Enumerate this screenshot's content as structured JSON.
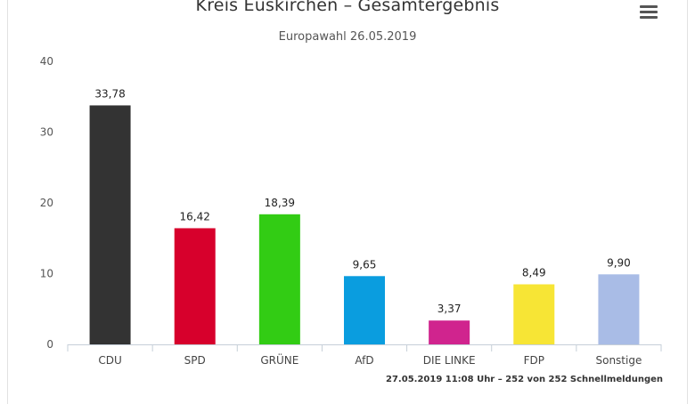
{
  "header": {
    "title": "Kreis Euskirchen – Gesamtergebnis",
    "subtitle": "Europawahl 26.05.2019",
    "menu_icon": "hamburger-menu-icon"
  },
  "footer": {
    "note": "27.05.2019 11:08 Uhr – 252 von 252 Schnellmeldungen"
  },
  "chart_data": {
    "type": "bar",
    "title": "Kreis Euskirchen – Gesamtergebnis",
    "subtitle": "Europawahl 26.05.2019",
    "xlabel": "",
    "ylabel": "",
    "ylim": [
      0,
      40
    ],
    "yticks": [
      "0",
      "10",
      "20",
      "30",
      "40"
    ],
    "grid": false,
    "legend": "none",
    "categories": [
      "CDU",
      "SPD",
      "GRÜNE",
      "AfD",
      "DIE LINKE",
      "FDP",
      "Sonstige"
    ],
    "values": [
      33.78,
      16.42,
      18.39,
      9.65,
      3.37,
      8.49,
      9.9
    ],
    "value_labels": [
      "33,78",
      "16,42",
      "18,39",
      "9,65",
      "3,37",
      "8,49",
      "9,90"
    ],
    "colors": [
      "#333333",
      "#d7002c",
      "#32cc14",
      "#0a9ddf",
      "#d0248e",
      "#f7e535",
      "#a9bce6"
    ]
  }
}
